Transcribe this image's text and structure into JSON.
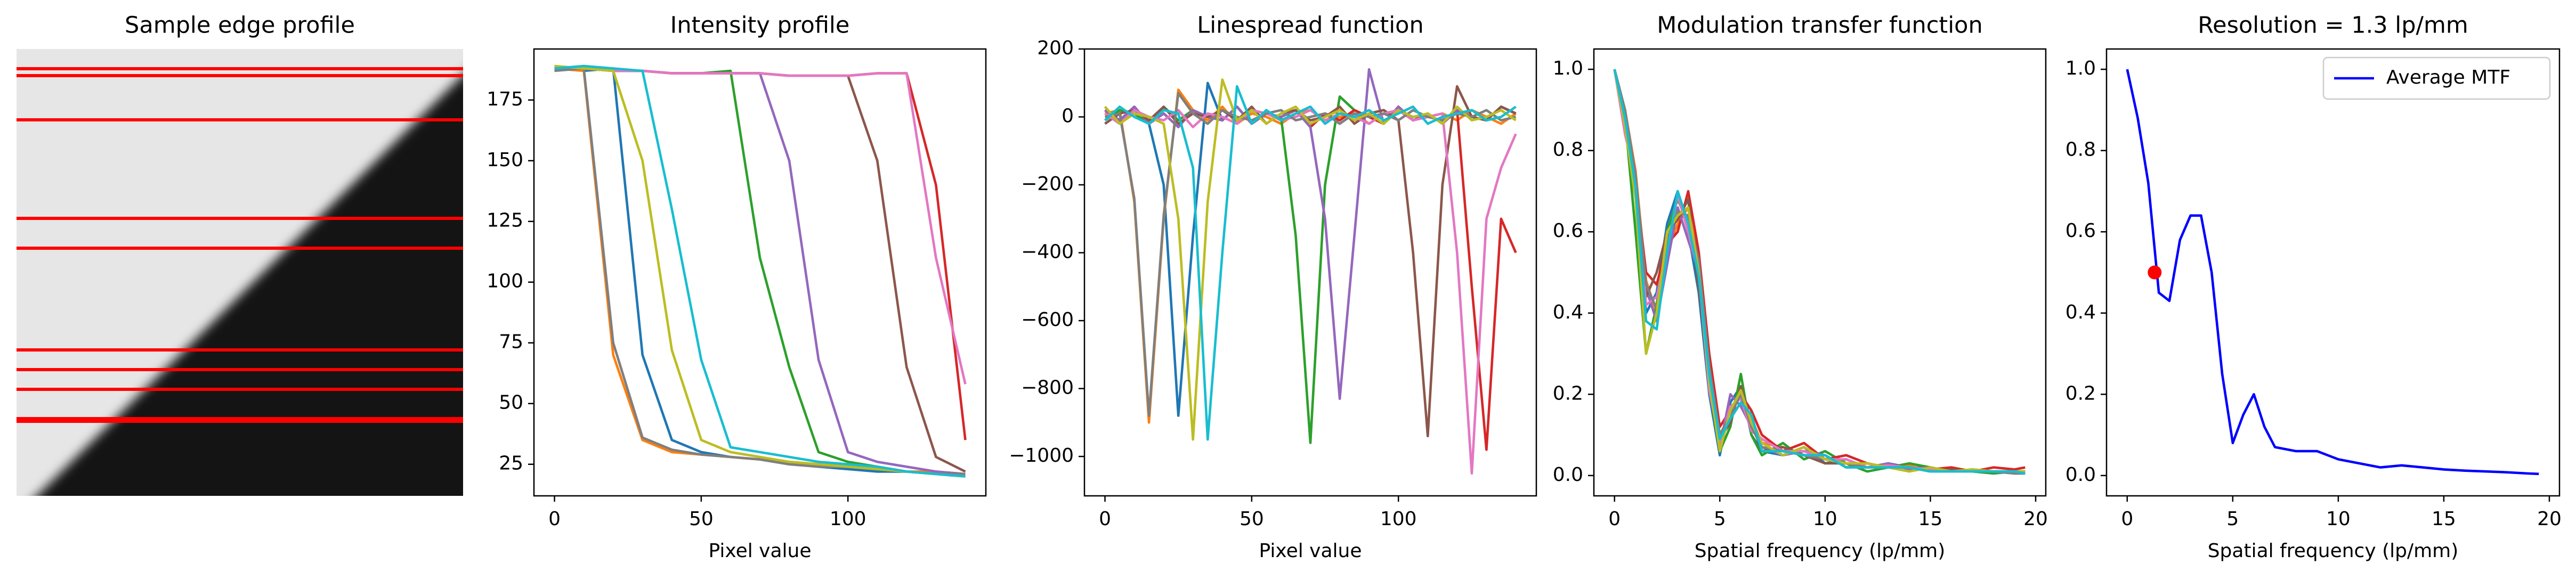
{
  "chart_data": [
    {
      "type": "image",
      "title": "Sample edge profile"
    },
    {
      "type": "line",
      "title": "Intensity profile",
      "xlabel": "Pixel value",
      "x": [
        0,
        10,
        20,
        30,
        40,
        50,
        60,
        70,
        80,
        90,
        100,
        110,
        120,
        130,
        140
      ],
      "xlim": [
        -7,
        147
      ],
      "xticks": [
        0,
        50,
        100
      ],
      "ylim": [
        12,
        196
      ],
      "yticks": [
        25,
        50,
        75,
        100,
        125,
        150,
        175
      ],
      "series": [
        {
          "color": "#1f77b4",
          "values": [
            188,
            187,
            188,
            70,
            35,
            30,
            28,
            27,
            25,
            24,
            23,
            22,
            22,
            21,
            20
          ]
        },
        {
          "color": "#ff7f0e",
          "values": [
            188,
            187,
            70,
            35,
            30,
            29,
            28,
            27,
            26,
            25,
            24,
            23,
            22,
            22,
            21
          ]
        },
        {
          "color": "#2ca02c",
          "values": [
            188,
            188,
            187,
            187,
            186,
            186,
            187,
            110,
            65,
            30,
            26,
            24,
            22,
            21,
            20
          ]
        },
        {
          "color": "#d62728",
          "values": [
            188,
            188,
            187,
            187,
            186,
            186,
            186,
            186,
            185,
            185,
            185,
            186,
            186,
            140,
            35
          ]
        },
        {
          "color": "#9467bd",
          "values": [
            188,
            188,
            187,
            187,
            186,
            186,
            186,
            186,
            150,
            68,
            30,
            26,
            24,
            22,
            21
          ]
        },
        {
          "color": "#8c564b",
          "values": [
            188,
            188,
            187,
            187,
            186,
            186,
            186,
            186,
            185,
            185,
            185,
            150,
            65,
            28,
            22
          ]
        },
        {
          "color": "#e377c2",
          "values": [
            188,
            188,
            187,
            187,
            186,
            186,
            186,
            186,
            185,
            185,
            185,
            186,
            186,
            110,
            58
          ]
        },
        {
          "color": "#7f7f7f",
          "values": [
            187,
            188,
            75,
            36,
            31,
            29,
            28,
            27,
            25,
            24,
            24,
            23,
            22,
            21,
            21
          ]
        },
        {
          "color": "#bcbd22",
          "values": [
            189,
            188,
            187,
            150,
            72,
            35,
            30,
            28,
            26,
            25,
            24,
            23,
            22,
            21,
            20
          ]
        },
        {
          "color": "#17becf",
          "values": [
            188,
            189,
            188,
            187,
            130,
            68,
            32,
            30,
            28,
            26,
            25,
            24,
            22,
            21,
            20
          ]
        }
      ]
    },
    {
      "type": "line",
      "title": "Linespread function",
      "xlabel": "Pixel value",
      "x": [
        0,
        5,
        10,
        15,
        20,
        25,
        30,
        35,
        40,
        45,
        50,
        55,
        60,
        65,
        70,
        75,
        80,
        85,
        90,
        95,
        100,
        105,
        110,
        115,
        120,
        125,
        130,
        135,
        140
      ],
      "xlim": [
        -7,
        147
      ],
      "xticks": [
        0,
        50,
        100
      ],
      "ylim": [
        -1116,
        200
      ],
      "yticks": [
        {
          "value": -1000,
          "label": "−1000"
        },
        {
          "value": -800,
          "label": "−800"
        },
        {
          "value": -600,
          "label": "−600"
        },
        {
          "value": -400,
          "label": "−400"
        },
        {
          "value": -200,
          "label": "−200"
        },
        0,
        200
      ],
      "series": [
        {
          "color": "#1f77b4",
          "values": [
            20,
            -10,
            30,
            -20,
            -200,
            -880,
            -350,
            100,
            -10,
            30,
            -20,
            10,
            0,
            20,
            -30,
            10,
            -10,
            20,
            0,
            -20,
            30,
            -10,
            10,
            -20,
            20,
            0,
            -10,
            30,
            10
          ]
        },
        {
          "color": "#ff7f0e",
          "values": [
            10,
            20,
            -250,
            -900,
            -300,
            80,
            20,
            -10,
            30,
            -20,
            10,
            0,
            -20,
            10,
            20,
            -10,
            0,
            10,
            -20,
            10,
            20,
            -10,
            0,
            10,
            -10,
            20,
            0,
            -20,
            10
          ]
        },
        {
          "color": "#2ca02c",
          "values": [
            -10,
            20,
            10,
            -20,
            30,
            -10,
            20,
            0,
            -10,
            30,
            -20,
            10,
            0,
            -350,
            -960,
            -200,
            60,
            20,
            0,
            -20,
            30,
            -10,
            10,
            -20,
            20,
            0,
            -10,
            30,
            10
          ]
        },
        {
          "color": "#d62728",
          "values": [
            20,
            -10,
            30,
            -20,
            10,
            -30,
            20,
            0,
            -10,
            30,
            -20,
            10,
            0,
            20,
            -30,
            10,
            -10,
            20,
            0,
            -20,
            30,
            -10,
            10,
            -20,
            20,
            -500,
            -980,
            -300,
            -400
          ]
        },
        {
          "color": "#9467bd",
          "values": [
            20,
            -10,
            30,
            -20,
            10,
            -30,
            20,
            0,
            -10,
            30,
            -20,
            10,
            0,
            20,
            -30,
            -300,
            -830,
            -350,
            140,
            -20,
            30,
            -10,
            10,
            -20,
            20,
            0,
            -10,
            30,
            10
          ]
        },
        {
          "color": "#8c564b",
          "values": [
            -20,
            10,
            20,
            -10,
            30,
            -20,
            10,
            0,
            20,
            -10,
            30,
            -20,
            10,
            20,
            -10,
            0,
            30,
            -20,
            10,
            20,
            -10,
            -400,
            -940,
            -200,
            90,
            0,
            -10,
            30,
            10
          ]
        },
        {
          "color": "#e377c2",
          "values": [
            10,
            -20,
            20,
            0,
            -10,
            20,
            -30,
            10,
            0,
            -20,
            20,
            10,
            -10,
            0,
            20,
            -10,
            10,
            0,
            -20,
            10,
            20,
            -10,
            0,
            10,
            -400,
            -1050,
            -300,
            -150,
            -50
          ]
        },
        {
          "color": "#7f7f7f",
          "values": [
            0,
            10,
            -240,
            -880,
            -290,
            70,
            10,
            -20,
            20,
            0,
            -10,
            10,
            20,
            -10,
            0,
            10,
            -20,
            10,
            0,
            10,
            -10,
            20,
            0,
            -10,
            10,
            0,
            20,
            -10,
            0
          ]
        },
        {
          "color": "#bcbd22",
          "values": [
            30,
            -20,
            10,
            0,
            -20,
            -300,
            -950,
            -250,
            110,
            -10,
            20,
            -20,
            10,
            30,
            -20,
            0,
            20,
            -10,
            10,
            -20,
            20,
            0,
            10,
            -20,
            30,
            -10,
            0,
            20,
            -10
          ]
        },
        {
          "color": "#17becf",
          "values": [
            -10,
            30,
            0,
            -20,
            20,
            10,
            -150,
            -950,
            -400,
            90,
            -20,
            20,
            -10,
            10,
            30,
            -20,
            10,
            0,
            20,
            -10,
            10,
            30,
            -20,
            0,
            10,
            20,
            -10,
            0,
            30
          ]
        }
      ]
    },
    {
      "type": "line",
      "title": "Modulation transfer function",
      "xlabel": "Spatial frequency (lp/mm)",
      "x": [
        0,
        0.5,
        1,
        1.5,
        2,
        2.5,
        3,
        3.5,
        4,
        4.5,
        5,
        5.5,
        6,
        6.5,
        7,
        8,
        9,
        10,
        11,
        12,
        13,
        14,
        15,
        16,
        17,
        18,
        19,
        19.5
      ],
      "xlim": [
        -0.98,
        20.48
      ],
      "xticks": [
        0,
        5,
        10,
        15,
        20
      ],
      "ylim": [
        -0.05,
        1.05
      ],
      "yticks": [
        {
          "value": 0,
          "label": "0.0"
        },
        0.2,
        0.4,
        0.6,
        0.8,
        {
          "value": 1,
          "label": "1.0"
        }
      ],
      "series": [
        {
          "color": "#1f77b4",
          "values": [
            1,
            0.85,
            0.7,
            0.4,
            0.45,
            0.62,
            0.7,
            0.6,
            0.45,
            0.2,
            0.05,
            0.18,
            0.22,
            0.1,
            0.06,
            0.05,
            0.07,
            0.03,
            0.04,
            0.02,
            0.03,
            0.02,
            0.02,
            0.01,
            0.015,
            0.01,
            0.01,
            0.01
          ]
        },
        {
          "color": "#ff7f0e",
          "values": [
            1,
            0.9,
            0.75,
            0.48,
            0.4,
            0.55,
            0.62,
            0.66,
            0.52,
            0.28,
            0.1,
            0.14,
            0.18,
            0.14,
            0.08,
            0.07,
            0.05,
            0.05,
            0.02,
            0.03,
            0.02,
            0.025,
            0.01,
            0.02,
            0.01,
            0.01,
            0.005,
            0.01
          ]
        },
        {
          "color": "#2ca02c",
          "values": [
            1,
            0.88,
            0.6,
            0.3,
            0.42,
            0.6,
            0.68,
            0.62,
            0.48,
            0.22,
            0.06,
            0.12,
            0.25,
            0.1,
            0.05,
            0.08,
            0.04,
            0.06,
            0.03,
            0.01,
            0.02,
            0.03,
            0.02,
            0.01,
            0.01,
            0.005,
            0.01,
            0.01
          ]
        },
        {
          "color": "#d62728",
          "values": [
            1,
            0.86,
            0.72,
            0.5,
            0.47,
            0.57,
            0.6,
            0.7,
            0.55,
            0.3,
            0.12,
            0.16,
            0.2,
            0.16,
            0.1,
            0.06,
            0.08,
            0.04,
            0.05,
            0.03,
            0.02,
            0.02,
            0.015,
            0.02,
            0.01,
            0.02,
            0.015,
            0.02
          ]
        },
        {
          "color": "#9467bd",
          "values": [
            1,
            0.87,
            0.74,
            0.46,
            0.38,
            0.52,
            0.66,
            0.58,
            0.5,
            0.24,
            0.07,
            0.2,
            0.17,
            0.12,
            0.07,
            0.05,
            0.06,
            0.05,
            0.02,
            0.02,
            0.03,
            0.015,
            0.02,
            0.01,
            0.01,
            0.01,
            0.005,
            0.005
          ]
        },
        {
          "color": "#8c564b",
          "values": [
            1,
            0.89,
            0.7,
            0.44,
            0.5,
            0.6,
            0.63,
            0.68,
            0.46,
            0.26,
            0.09,
            0.13,
            0.22,
            0.13,
            0.06,
            0.07,
            0.05,
            0.03,
            0.03,
            0.02,
            0.02,
            0.02,
            0.01,
            0.015,
            0.01,
            0.01,
            0.01,
            0.01
          ]
        },
        {
          "color": "#e377c2",
          "values": [
            1,
            0.84,
            0.73,
            0.42,
            0.44,
            0.56,
            0.69,
            0.6,
            0.5,
            0.21,
            0.08,
            0.17,
            0.19,
            0.11,
            0.09,
            0.06,
            0.06,
            0.04,
            0.04,
            0.02,
            0.025,
            0.02,
            0.015,
            0.01,
            0.01,
            0.01,
            0.01,
            0.005
          ]
        },
        {
          "color": "#7f7f7f",
          "values": [
            1,
            0.9,
            0.74,
            0.47,
            0.41,
            0.58,
            0.65,
            0.64,
            0.53,
            0.27,
            0.1,
            0.15,
            0.2,
            0.12,
            0.07,
            0.06,
            0.05,
            0.04,
            0.03,
            0.02,
            0.02,
            0.02,
            0.01,
            0.01,
            0.01,
            0.01,
            0.005,
            0.005
          ]
        },
        {
          "color": "#bcbd22",
          "values": [
            1,
            0.86,
            0.68,
            0.3,
            0.4,
            0.6,
            0.64,
            0.66,
            0.5,
            0.23,
            0.06,
            0.16,
            0.21,
            0.13,
            0.08,
            0.05,
            0.07,
            0.04,
            0.03,
            0.03,
            0.02,
            0.01,
            0.02,
            0.01,
            0.015,
            0.01,
            0.01,
            0.01
          ]
        },
        {
          "color": "#17becf",
          "values": [
            1,
            0.88,
            0.71,
            0.38,
            0.36,
            0.55,
            0.7,
            0.62,
            0.49,
            0.25,
            0.09,
            0.14,
            0.18,
            0.15,
            0.06,
            0.06,
            0.05,
            0.05,
            0.02,
            0.02,
            0.02,
            0.02,
            0.01,
            0.01,
            0.01,
            0.01,
            0.01,
            0.005
          ]
        }
      ]
    },
    {
      "type": "line",
      "title": "Resolution = 1.3 lp/mm",
      "xlabel": "Spatial frequency (lp/mm)",
      "x": [
        0,
        0.5,
        1,
        1.5,
        2,
        2.5,
        3,
        3.5,
        4,
        4.5,
        5,
        5.5,
        6,
        6.5,
        7,
        8,
        9,
        10,
        11,
        12,
        13,
        14,
        15,
        16,
        17,
        18,
        19,
        19.5
      ],
      "xlim": [
        -0.98,
        20.48
      ],
      "xticks": [
        0,
        5,
        10,
        15,
        20
      ],
      "ylim": [
        -0.05,
        1.05
      ],
      "yticks": [
        {
          "value": 0,
          "label": "0.0"
        },
        0.2,
        0.4,
        0.6,
        0.8,
        {
          "value": 1,
          "label": "1.0"
        }
      ],
      "legend": "upper right",
      "series": [
        {
          "name": "Average MTF",
          "color": "#0000ff",
          "values": [
            1,
            0.88,
            0.72,
            0.45,
            0.43,
            0.58,
            0.64,
            0.64,
            0.5,
            0.25,
            0.08,
            0.15,
            0.2,
            0.12,
            0.07,
            0.06,
            0.06,
            0.04,
            0.03,
            0.02,
            0.025,
            0.02,
            0.015,
            0.012,
            0.01,
            0.008,
            0.005,
            0.004
          ]
        }
      ],
      "points": {
        "color": "#ff0000",
        "x": [
          1.3
        ],
        "y": [
          0.5
        ]
      }
    }
  ]
}
